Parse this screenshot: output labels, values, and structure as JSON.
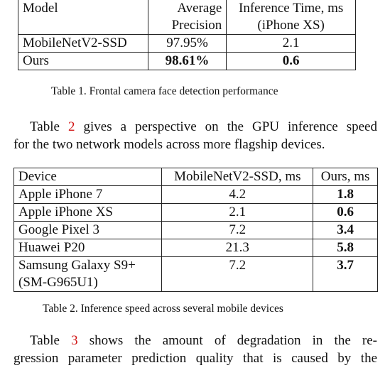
{
  "table1": {
    "headers": {
      "model": "Model",
      "ap_line1": "Average",
      "ap_line2": "Precision",
      "time_line1": "Inference Time, ms",
      "time_line2": "(iPhone XS)"
    },
    "rows": [
      {
        "model": "MobileNetV2-SSD",
        "ap": "97.95%",
        "time": "2.1"
      },
      {
        "model": "Ours",
        "ap": "98.61%",
        "time": "0.6"
      }
    ],
    "caption": "Table 1. Frontal camera face detection performance"
  },
  "paragraph1": {
    "pre": "Table ",
    "ref": "2",
    "post": " gives a perspective on the GPU inference speed",
    "line2": "for the two network models across more flagship devices."
  },
  "table2": {
    "headers": {
      "device": "Device",
      "ssd": "MobileNetV2-SSD, ms",
      "ours": "Ours, ms"
    },
    "rows": [
      {
        "device": "Apple iPhone 7",
        "ssd": "4.2",
        "ours": "1.8"
      },
      {
        "device": "Apple iPhone XS",
        "ssd": "2.1",
        "ours": "0.6"
      },
      {
        "device": "Google Pixel 3",
        "ssd": "7.2",
        "ours": "3.4"
      },
      {
        "device": "Huawei P20",
        "ssd": "21.3",
        "ours": "5.8"
      },
      {
        "device_line1": "Samsung Galaxy S9+",
        "device_line2": "(SM-G965U1)",
        "ssd": "7.2",
        "ours": "3.7"
      }
    ],
    "caption": "Table 2. Inference speed across several mobile devices"
  },
  "paragraph2": {
    "pre": "Table ",
    "ref": "3",
    "post": " shows the amount of degradation in the re-",
    "line2": "gression parameter prediction quality that is caused by the"
  },
  "colors": {
    "reference_link": "#d11414",
    "text": "#111111",
    "rule": "#222222"
  }
}
